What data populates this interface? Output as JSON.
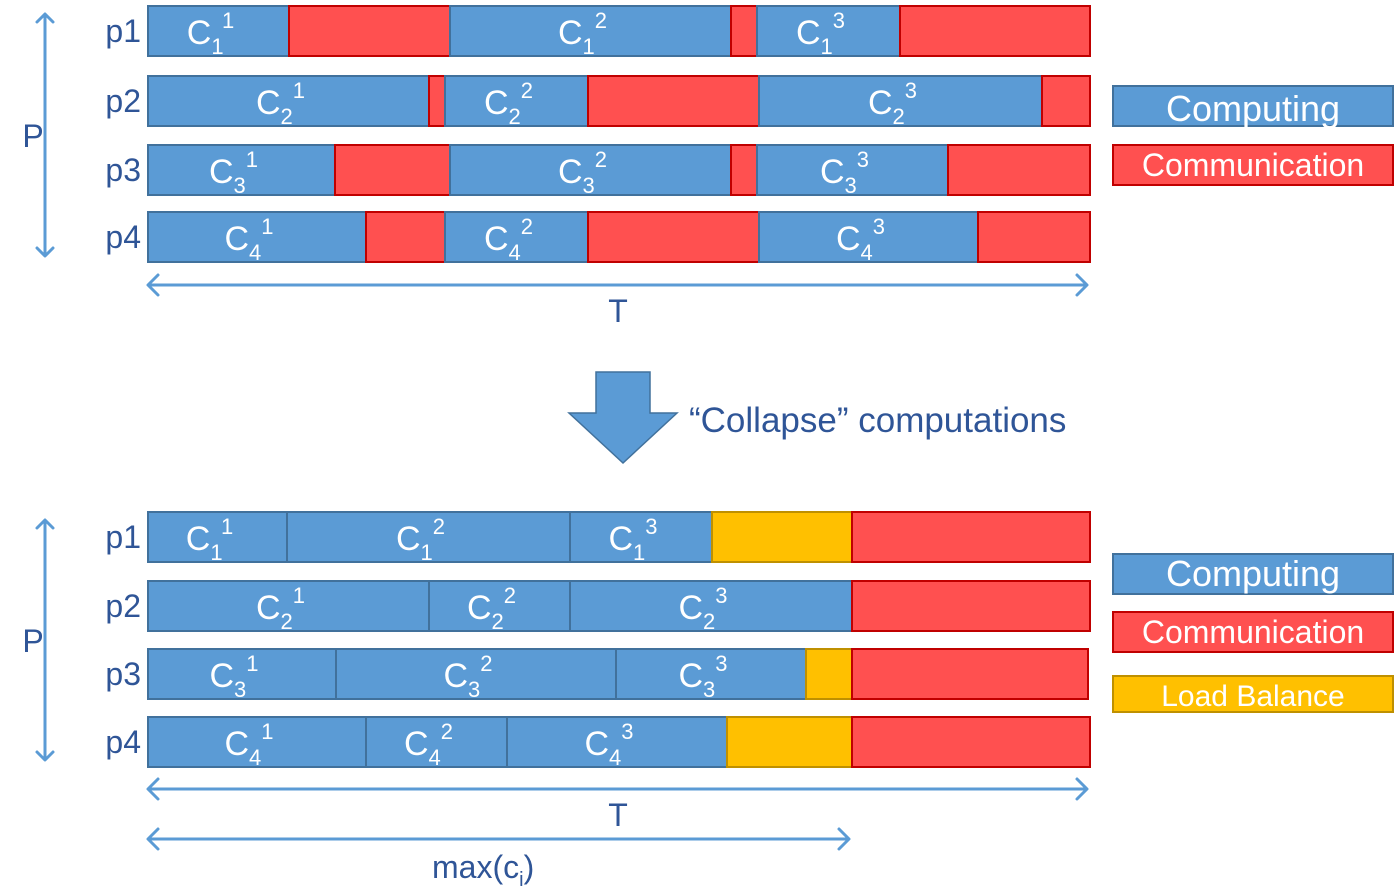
{
  "colors": {
    "computing": "#5b9bd5",
    "computing_border": "#41719c",
    "communication": "#ff5050",
    "communication_border": "#c00000",
    "load_balance": "#ffc000",
    "load_balance_border": "#bf9000",
    "label": "#2f5597",
    "arrow": "#5b9bd5"
  },
  "top": {
    "axis_p": "P",
    "axis_t": "T",
    "rows": [
      {
        "label": "p1",
        "segments": [
          {
            "kind": "computing",
            "base": "C",
            "sub": "1",
            "sup": "1"
          },
          {
            "kind": "communication"
          },
          {
            "kind": "computing",
            "base": "C",
            "sub": "1",
            "sup": "2"
          },
          {
            "kind": "communication"
          },
          {
            "kind": "computing",
            "base": "C",
            "sub": "1",
            "sup": "3"
          },
          {
            "kind": "communication"
          }
        ]
      },
      {
        "label": "p2",
        "segments": [
          {
            "kind": "computing",
            "base": "C",
            "sub": "2",
            "sup": "1"
          },
          {
            "kind": "communication"
          },
          {
            "kind": "computing",
            "base": "C",
            "sub": "2",
            "sup": "2"
          },
          {
            "kind": "communication"
          },
          {
            "kind": "computing",
            "base": "C",
            "sub": "2",
            "sup": "3"
          },
          {
            "kind": "communication"
          }
        ]
      },
      {
        "label": "p3",
        "segments": [
          {
            "kind": "computing",
            "base": "C",
            "sub": "3",
            "sup": "1"
          },
          {
            "kind": "communication"
          },
          {
            "kind": "computing",
            "base": "C",
            "sub": "3",
            "sup": "2"
          },
          {
            "kind": "communication"
          },
          {
            "kind": "computing",
            "base": "C",
            "sub": "3",
            "sup": "3"
          },
          {
            "kind": "communication"
          }
        ]
      },
      {
        "label": "p4",
        "segments": [
          {
            "kind": "computing",
            "base": "C",
            "sub": "4",
            "sup": "1"
          },
          {
            "kind": "communication"
          },
          {
            "kind": "computing",
            "base": "C",
            "sub": "4",
            "sup": "2"
          },
          {
            "kind": "communication"
          },
          {
            "kind": "computing",
            "base": "C",
            "sub": "4",
            "sup": "3"
          },
          {
            "kind": "communication"
          }
        ]
      }
    ],
    "legend": [
      {
        "kind": "computing",
        "text": "Computing"
      },
      {
        "kind": "communication",
        "text": "Communication"
      }
    ]
  },
  "transition": {
    "text": "“Collapse” computations"
  },
  "bottom": {
    "axis_p": "P",
    "axis_t": "T",
    "max_base": "max(c",
    "max_sub": "i",
    "max_close": ")",
    "rows": [
      {
        "label": "p1",
        "segments": [
          {
            "kind": "computing",
            "base": "C",
            "sub": "1",
            "sup": "1"
          },
          {
            "kind": "computing",
            "base": "C",
            "sub": "1",
            "sup": "2"
          },
          {
            "kind": "computing",
            "base": "C",
            "sub": "1",
            "sup": "3"
          },
          {
            "kind": "load_balance"
          },
          {
            "kind": "communication"
          }
        ]
      },
      {
        "label": "p2",
        "segments": [
          {
            "kind": "computing",
            "base": "C",
            "sub": "2",
            "sup": "1"
          },
          {
            "kind": "computing",
            "base": "C",
            "sub": "2",
            "sup": "2"
          },
          {
            "kind": "computing",
            "base": "C",
            "sub": "2",
            "sup": "3"
          },
          {
            "kind": "communication"
          }
        ]
      },
      {
        "label": "p3",
        "segments": [
          {
            "kind": "computing",
            "base": "C",
            "sub": "3",
            "sup": "1"
          },
          {
            "kind": "computing",
            "base": "C",
            "sub": "3",
            "sup": "2"
          },
          {
            "kind": "computing",
            "base": "C",
            "sub": "3",
            "sup": "3"
          },
          {
            "kind": "load_balance"
          },
          {
            "kind": "communication"
          }
        ]
      },
      {
        "label": "p4",
        "segments": [
          {
            "kind": "computing",
            "base": "C",
            "sub": "4",
            "sup": "1"
          },
          {
            "kind": "computing",
            "base": "C",
            "sub": "4",
            "sup": "2"
          },
          {
            "kind": "computing",
            "base": "C",
            "sub": "4",
            "sup": "3"
          },
          {
            "kind": "load_balance"
          },
          {
            "kind": "communication"
          }
        ]
      }
    ],
    "legend": [
      {
        "kind": "computing",
        "text": "Computing"
      },
      {
        "kind": "communication",
        "text": "Communication"
      },
      {
        "kind": "load_balance",
        "text": "Load Balance"
      }
    ]
  }
}
